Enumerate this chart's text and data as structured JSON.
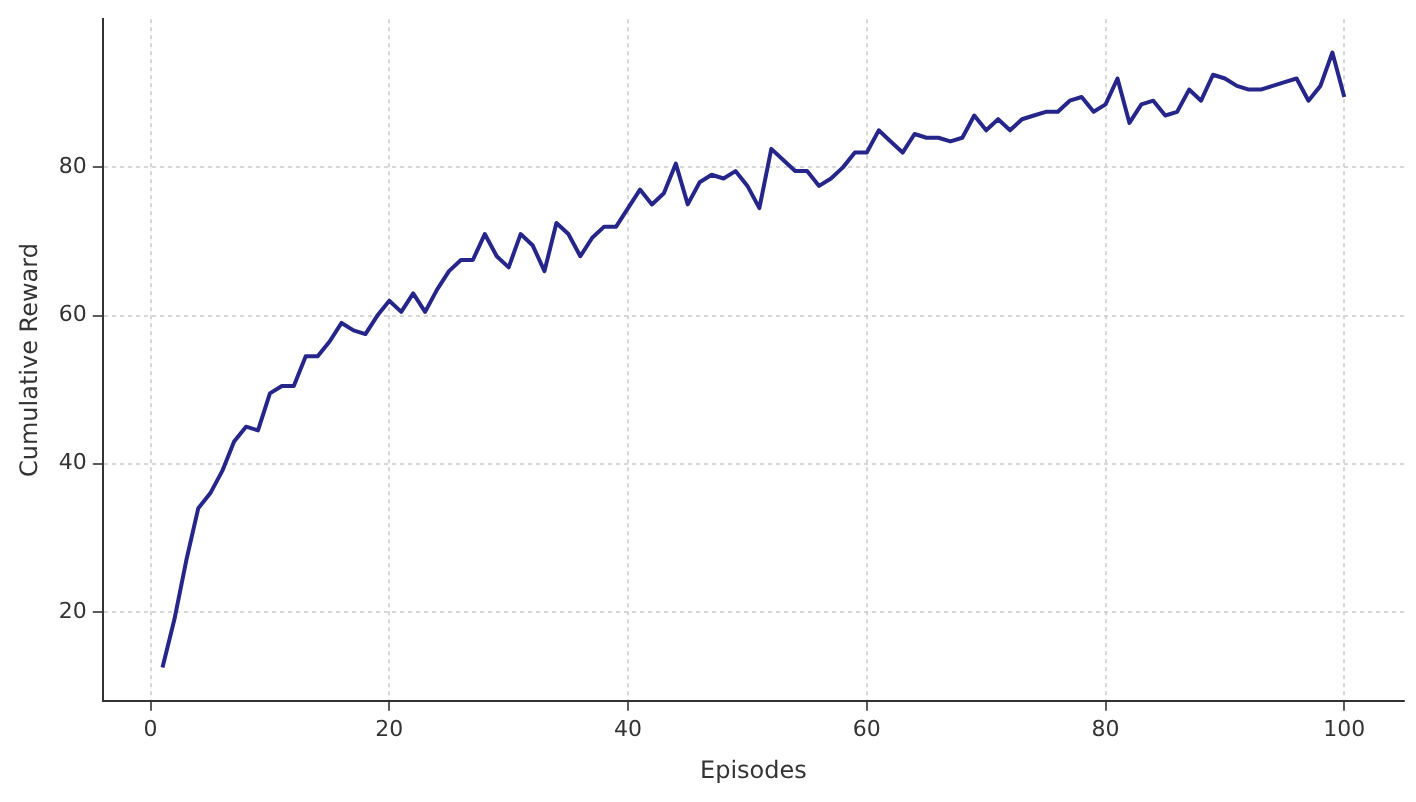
{
  "chart_data": {
    "type": "line",
    "xlabel": "Episodes",
    "ylabel": "Cumulative Reward",
    "x": [
      1,
      2,
      3,
      4,
      5,
      6,
      7,
      8,
      9,
      10,
      11,
      12,
      13,
      14,
      15,
      16,
      17,
      18,
      19,
      20,
      21,
      22,
      23,
      24,
      25,
      26,
      27,
      28,
      29,
      30,
      31,
      32,
      33,
      34,
      35,
      36,
      37,
      38,
      39,
      40,
      41,
      42,
      43,
      44,
      45,
      46,
      47,
      48,
      49,
      50,
      51,
      52,
      53,
      54,
      55,
      56,
      57,
      58,
      59,
      60,
      61,
      62,
      63,
      64,
      65,
      66,
      67,
      68,
      69,
      70,
      71,
      72,
      73,
      74,
      75,
      76,
      77,
      78,
      79,
      80,
      81,
      82,
      83,
      84,
      85,
      86,
      87,
      88,
      89,
      90,
      91,
      92,
      93,
      94,
      95,
      96,
      97,
      98,
      99,
      100
    ],
    "series": [
      {
        "color": "#26268a",
        "values": [
          12.5,
          19,
          27,
          34,
          36,
          39,
          43,
          45,
          44.5,
          49.5,
          50.5,
          50.5,
          54.5,
          54.5,
          56.5,
          59,
          58,
          57.5,
          60,
          62,
          60.5,
          63,
          60.5,
          63.5,
          66,
          67.5,
          67.5,
          71,
          68,
          66.5,
          71,
          69.5,
          66,
          72.5,
          71,
          68,
          70.5,
          72,
          72,
          74.5,
          77,
          75,
          76.5,
          80.5,
          75,
          78,
          79,
          78.5,
          79.5,
          77.5,
          74.5,
          82.5,
          81,
          79.5,
          79.5,
          77.5,
          78.5,
          80,
          82,
          82,
          85,
          83.5,
          82,
          84.5,
          84,
          84,
          83.5,
          84,
          87,
          85,
          86.5,
          85,
          86.5,
          87,
          87.5,
          87.5,
          89,
          89.5,
          87.5,
          88.5,
          92,
          86,
          88.5,
          89,
          87,
          87.5,
          90.5,
          89,
          92.5,
          92,
          91,
          90.5,
          90.5,
          91,
          91.5,
          92,
          89,
          91,
          95.5,
          89.5
        ]
      }
    ],
    "xlim": [
      -4,
      105
    ],
    "xticks": [
      0,
      20,
      40,
      60,
      80,
      100
    ],
    "ylim": [
      8,
      100
    ],
    "yticks": [
      20,
      40,
      60,
      80
    ],
    "grid": true,
    "legend": false,
    "marker": "none",
    "line_style": "solid"
  }
}
